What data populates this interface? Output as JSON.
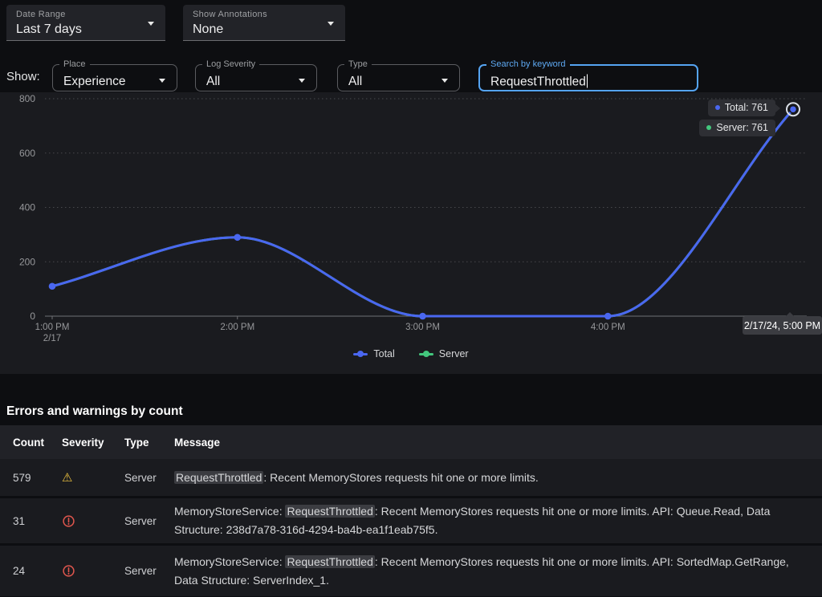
{
  "colors": {
    "accent_blue": "#4a67f0",
    "series_green": "#43c77d",
    "focus_blue": "#55a4f2",
    "warning_yellow": "#eec33f",
    "error_red": "#e2574e",
    "panel_bg": "#1a1b1f",
    "chip_bg": "#2e2f34"
  },
  "top_bar": {
    "date_range": {
      "label": "Date Range",
      "value": "Last 7 days"
    },
    "annotations": {
      "label": "Show Annotations",
      "value": "None"
    }
  },
  "filter_bar": {
    "show_label": "Show:",
    "place": {
      "label": "Place",
      "value": "Experience"
    },
    "log_severity": {
      "label": "Log Severity",
      "value": "All"
    },
    "type": {
      "label": "Type",
      "value": "All"
    },
    "search": {
      "label": "Search by keyword",
      "value": "RequestThrottled"
    }
  },
  "chart_data": {
    "type": "line",
    "x": [
      "1:00 PM",
      "2:00 PM",
      "3:00 PM",
      "4:00 PM",
      "5:00 PM"
    ],
    "x_sublabels": [
      "2/17",
      "",
      "",
      "",
      ""
    ],
    "yticks": [
      0,
      200,
      400,
      600,
      800
    ],
    "ylim": [
      0,
      800
    ],
    "grid": "dotted-horizontal",
    "legend_position": "bottom-center",
    "series": [
      {
        "name": "Server",
        "color": "#43c77d",
        "values": [
          110,
          290,
          0,
          0,
          761
        ]
      },
      {
        "name": "Total",
        "color": "#4a67f0",
        "values": [
          110,
          290,
          0,
          0,
          761
        ]
      }
    ],
    "hover": {
      "point_index": 4,
      "date_label": "2/17/24, 5:00 PM",
      "total": 761,
      "server": 761
    }
  },
  "tooltip": {
    "total": "Total: 761",
    "server": "Server: 761",
    "date": "2/17/24, 5:00 PM"
  },
  "legend": [
    {
      "name": "Total",
      "color": "#4a67f0"
    },
    {
      "name": "Server",
      "color": "#43c77d"
    }
  ],
  "table": {
    "title": "Errors and warnings by count",
    "columns": [
      "Count",
      "Severity",
      "Type",
      "Message"
    ],
    "rows": [
      {
        "count": "579",
        "severity": "warning",
        "type": "Server",
        "message": {
          "pre": "",
          "hl": "RequestThrottled",
          "post": ": Recent MemoryStores requests hit one or more limits."
        }
      },
      {
        "count": "31",
        "severity": "error",
        "type": "Server",
        "message": {
          "pre": "MemoryStoreService: ",
          "hl": "RequestThrottled",
          "post": ": Recent MemoryStores requests hit one or more limits. API: Queue.Read, Data Structure: 238d7a78-316d-4294-ba4b-ea1f1eab75f5."
        }
      },
      {
        "count": "24",
        "severity": "error",
        "type": "Server",
        "message": {
          "pre": "MemoryStoreService: ",
          "hl": "RequestThrottled",
          "post": ": Recent MemoryStores requests hit one or more limits. API: SortedMap.GetRange, Data Structure: ServerIndex_1."
        }
      }
    ]
  }
}
